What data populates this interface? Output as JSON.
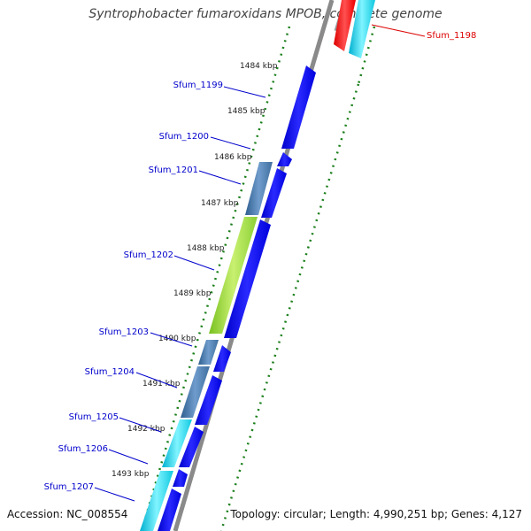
{
  "title": "Syntrophobacter fumaroxidans MPOB, complete genome",
  "footer": {
    "accession": "Accession: NC_008554",
    "summary": "Topology: circular; Length: 4,990,251 bp; Genes: 4,127"
  },
  "colors": {
    "forward_gene": "#0000ee",
    "label_blue": "#0000cc",
    "label_red": "#dd0000",
    "backbone": "#888888",
    "tick_green": "#1a7f1a",
    "steelblue": "#4f81b5",
    "lime": "#9be040",
    "cyan": "#22d8e8",
    "red": "#ff1a1a"
  },
  "kbp_labels": [
    "1484 kbp",
    "1485 kbp",
    "1486 kbp",
    "1487 kbp",
    "1488 kbp",
    "1489 kbp",
    "1490 kbp",
    "1491 kbp",
    "1492 kbp",
    "1493 kbp"
  ],
  "gene_labels": [
    {
      "name": "Sfum_1199",
      "color": "#0000cc"
    },
    {
      "name": "Sfum_1200",
      "color": "#0000cc"
    },
    {
      "name": "Sfum_1201",
      "color": "#0000cc"
    },
    {
      "name": "Sfum_1202",
      "color": "#0000cc"
    },
    {
      "name": "Sfum_1203",
      "color": "#0000cc"
    },
    {
      "name": "Sfum_1204",
      "color": "#0000cc"
    },
    {
      "name": "Sfum_1205",
      "color": "#0000cc"
    },
    {
      "name": "Sfum_1206",
      "color": "#0000cc"
    },
    {
      "name": "Sfum_1207",
      "color": "#0000cc"
    },
    {
      "name": "Sfum_1198",
      "color": "#dd0000"
    }
  ]
}
